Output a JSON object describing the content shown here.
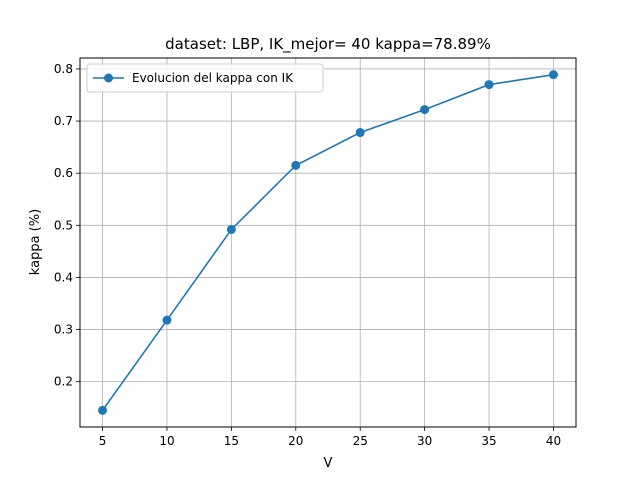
{
  "chart_data": {
    "type": "line",
    "title": "dataset: LBP, IK_mejor= 40 kappa=78.89%",
    "xlabel": "V",
    "ylabel": "kappa (%)",
    "x": [
      5,
      10,
      15,
      20,
      25,
      30,
      35,
      40
    ],
    "x_ticks": [
      "5",
      "10",
      "15",
      "20",
      "25",
      "30",
      "35",
      "40"
    ],
    "y_ticks": [
      "0.2",
      "0.3",
      "0.4",
      "0.5",
      "0.6",
      "0.7",
      "0.8"
    ],
    "xlim": [
      3.25,
      41.75
    ],
    "ylim": [
      0.113,
      0.821
    ],
    "series": [
      {
        "name": "Evolucion del kappa con IK",
        "color": "#1f77b4",
        "marker": "circle",
        "values": [
          0.145,
          0.318,
          0.492,
          0.615,
          0.678,
          0.722,
          0.77,
          0.789
        ]
      }
    ],
    "grid": true,
    "legend_position": "top-left"
  }
}
